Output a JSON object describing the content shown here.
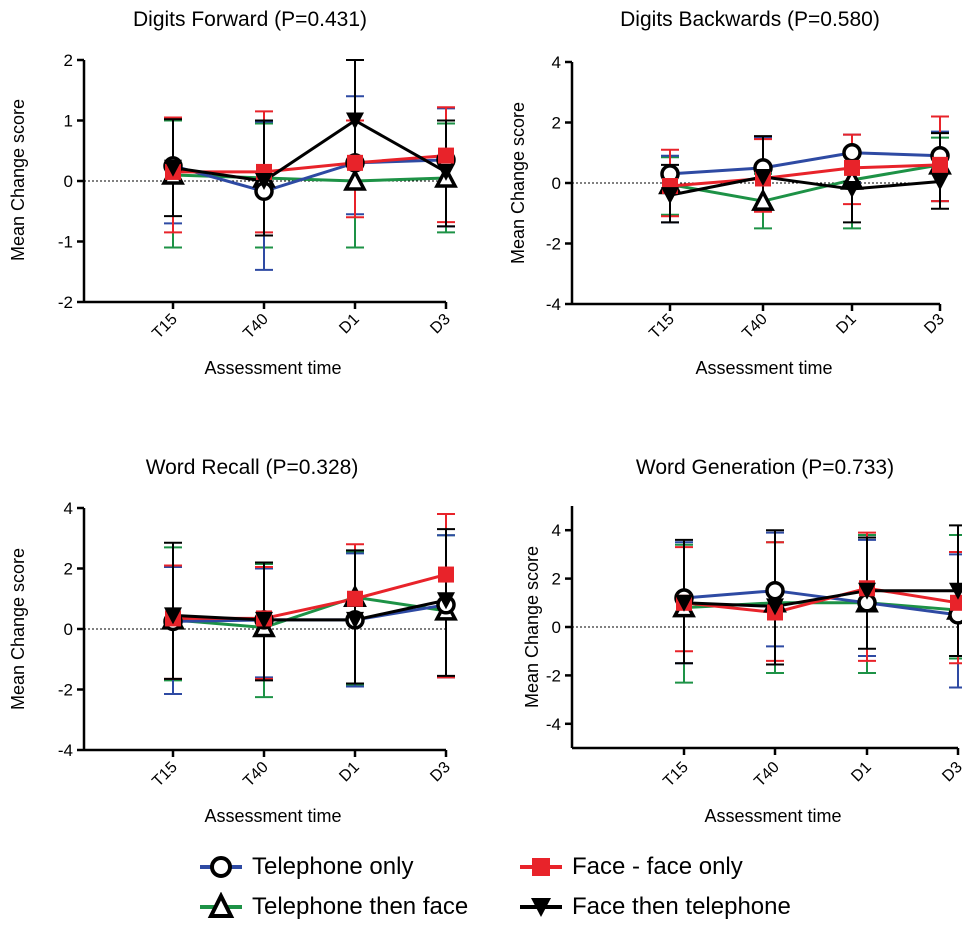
{
  "chart_data": [
    {
      "type": "line",
      "title": "Digits Forward  (P=0.431)",
      "xlabel": "Assessment time",
      "ylabel": "Mean Change score",
      "categories": [
        "T15",
        "T40",
        "D1",
        "D3"
      ],
      "ylim": [
        -2,
        2
      ],
      "yticks": [
        "-2",
        "-1",
        "0",
        "1",
        "2"
      ],
      "yticks_values": [
        -2,
        -1,
        0,
        1,
        2
      ],
      "series": [
        {
          "name": "Telephone only",
          "values": [
            0.25,
            -0.17,
            0.3,
            0.35
          ],
          "err_up": [
            0.8,
            1.15,
            1.1,
            0.85
          ],
          "err_down": [
            0.95,
            1.3,
            0.85,
            1.1
          ]
        },
        {
          "name": "Face - face only",
          "values": [
            0.15,
            0.15,
            0.3,
            0.42
          ],
          "err_up": [
            0.9,
            1.0,
            0.7,
            0.8
          ],
          "err_down": [
            1.0,
            1.0,
            0.9,
            1.1
          ]
        },
        {
          "name": "Telephone then face",
          "values": [
            0.1,
            0.05,
            0.0,
            0.05
          ],
          "err_up": [
            0.9,
            0.9,
            1.0,
            0.9
          ],
          "err_down": [
            1.2,
            1.15,
            1.1,
            0.9
          ]
        },
        {
          "name": "Face then telephone",
          "values": [
            0.22,
            0.0,
            1.0,
            0.15
          ],
          "err_up": [
            0.8,
            1.0,
            1.0,
            0.85
          ],
          "err_down": [
            0.8,
            0.9,
            1.0,
            0.9
          ]
        }
      ]
    },
    {
      "type": "line",
      "title": "Digits Backwards  (P=0.580)",
      "xlabel": "Assessment time",
      "ylabel": "Mean Change score",
      "categories": [
        "T15",
        "T40",
        "D1",
        "D3"
      ],
      "ylim": [
        -4,
        4
      ],
      "yticks": [
        "-4",
        "-2",
        "0",
        "2",
        "4"
      ],
      "yticks_values": [
        -4,
        -2,
        0,
        2,
        4
      ],
      "series": [
        {
          "name": "Telephone only",
          "values": [
            0.3,
            0.5,
            1.0,
            0.9
          ],
          "err_up": [
            0.6,
            1.0,
            0.6,
            0.8
          ],
          "err_down": [
            1.6,
            1.4,
            1.0,
            1.5
          ]
        },
        {
          "name": "Face - face only",
          "values": [
            -0.1,
            0.15,
            0.5,
            0.6
          ],
          "err_up": [
            1.2,
            1.3,
            1.1,
            1.6
          ],
          "err_down": [
            1.0,
            1.1,
            1.2,
            1.2
          ]
        },
        {
          "name": "Telephone then face",
          "values": [
            -0.05,
            -0.6,
            0.1,
            0.6
          ],
          "err_up": [
            0.9,
            0.9,
            0.8,
            0.9
          ],
          "err_down": [
            1.0,
            0.9,
            1.6,
            1.2
          ]
        },
        {
          "name": "Face then telephone",
          "values": [
            -0.4,
            0.2,
            -0.2,
            0.05
          ],
          "err_up": [
            1.0,
            1.35,
            1.2,
            1.6
          ],
          "err_down": [
            0.9,
            1.0,
            1.1,
            0.9
          ]
        }
      ]
    },
    {
      "type": "line",
      "title": "Word Recall (P=0.328)",
      "xlabel": "Assessment time",
      "ylabel": "Mean Change score",
      "categories": [
        "T15",
        "T40",
        "D1",
        "D3"
      ],
      "ylim": [
        -4,
        4
      ],
      "yticks": [
        "-4",
        "-2",
        "0",
        "2",
        "4"
      ],
      "yticks_values": [
        -4,
        -2,
        0,
        2,
        4
      ],
      "series": [
        {
          "name": "Telephone only",
          "values": [
            0.25,
            0.3,
            0.3,
            0.8
          ],
          "err_up": [
            1.8,
            1.7,
            2.2,
            2.3
          ],
          "err_down": [
            2.4,
            1.9,
            2.2,
            2.4
          ]
        },
        {
          "name": "Face - face only",
          "values": [
            0.35,
            0.35,
            1.0,
            1.8
          ],
          "err_up": [
            1.75,
            1.7,
            1.8,
            2.0
          ],
          "err_down": [
            2.0,
            2.0,
            2.8,
            3.4
          ]
        },
        {
          "name": "Telephone then face",
          "values": [
            0.3,
            0.05,
            1.05,
            0.6
          ],
          "err_up": [
            2.4,
            2.1,
            1.5,
            2.5
          ],
          "err_down": [
            2.0,
            2.3,
            2.9,
            2.2
          ]
        },
        {
          "name": "Face then telephone",
          "values": [
            0.45,
            0.3,
            0.3,
            0.95
          ],
          "err_up": [
            2.4,
            1.9,
            2.3,
            2.35
          ],
          "err_down": [
            2.1,
            2.0,
            2.1,
            2.5
          ]
        }
      ]
    },
    {
      "type": "line",
      "title": "Word Generation (P=0.733)",
      "xlabel": "Assessment time",
      "ylabel": "Mean Change score",
      "categories": [
        "T15",
        "T40",
        "D1",
        "D3"
      ],
      "ylim": [
        -5,
        5
      ],
      "yticks": [
        "-4",
        "-2",
        "0",
        "2",
        "4"
      ],
      "yticks_values": [
        -4,
        -2,
        0,
        2,
        4
      ],
      "series": [
        {
          "name": "Telephone only",
          "values": [
            1.2,
            1.5,
            1.0,
            0.5
          ],
          "err_up": [
            2.3,
            2.4,
            2.6,
            2.5
          ],
          "err_down": [
            2.7,
            2.3,
            2.2,
            3.0
          ]
        },
        {
          "name": "Face - face only",
          "values": [
            1.0,
            0.6,
            1.6,
            1.0
          ],
          "err_up": [
            2.3,
            2.9,
            2.3,
            2.1
          ],
          "err_down": [
            2.0,
            2.0,
            3.0,
            2.5
          ]
        },
        {
          "name": "Telephone then face",
          "values": [
            0.8,
            1.0,
            1.0,
            0.7
          ],
          "err_up": [
            2.6,
            2.5,
            2.8,
            3.1
          ],
          "err_down": [
            3.1,
            2.9,
            2.9,
            2.0
          ]
        },
        {
          "name": "Face then telephone",
          "values": [
            1.0,
            0.85,
            1.5,
            1.5
          ],
          "err_up": [
            2.6,
            3.15,
            2.2,
            2.7
          ],
          "err_down": [
            2.5,
            2.4,
            2.4,
            2.7
          ]
        }
      ]
    }
  ],
  "series_styles": {
    "Telephone only": {
      "color": "#2e4aa3",
      "marker": "open-circle"
    },
    "Face - face only": {
      "color": "#e8232a",
      "marker": "filled-square"
    },
    "Telephone then face": {
      "color": "#1d9246",
      "marker": "open-triangle"
    },
    "Face then telephone": {
      "color": "#000000",
      "marker": "filled-down-triangle"
    }
  },
  "legend": {
    "items": [
      {
        "label": "Telephone only",
        "color": "#2e4aa3",
        "marker": "open-circle-icon"
      },
      {
        "label": "Face - face only",
        "color": "#e8232a",
        "marker": "filled-square-icon"
      },
      {
        "label": "Telephone then face",
        "color": "#1d9246",
        "marker": "open-triangle-icon"
      },
      {
        "label": "Face then telephone",
        "color": "#000000",
        "marker": "filled-down-triangle-icon"
      }
    ]
  }
}
